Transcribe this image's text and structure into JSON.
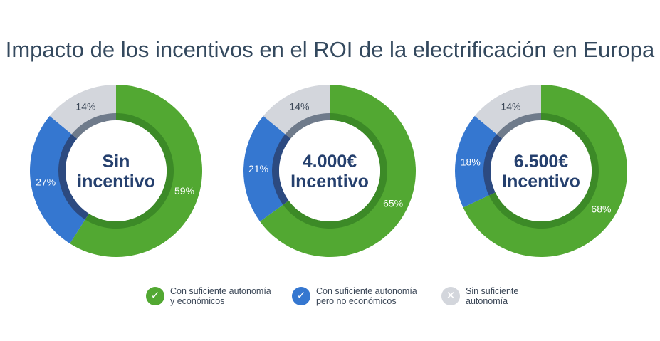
{
  "title": "Impacto de los incentivos en el ROI de la electrificación en Europa",
  "colors": {
    "green": "#52a832",
    "green_inner": "#3c8a27",
    "blue": "#3577d0",
    "blue_inner": "#2c4a80",
    "gray": "#d3d6dc",
    "gray_inner": "#6f7b8b",
    "center_text": "#25406e"
  },
  "chart_data": [
    {
      "type": "pie",
      "subtype": "donut",
      "center_label": [
        "Sin",
        "incentivo"
      ],
      "categories": [
        "Con suficiente autonomía y económicos",
        "Con suficiente autonomía pero no económicos",
        "Sin suficiente autonomía"
      ],
      "values": [
        59,
        27,
        14
      ],
      "labels": [
        "59%",
        "27%",
        "14%"
      ]
    },
    {
      "type": "pie",
      "subtype": "donut",
      "center_label": [
        "4.000€",
        "Incentivo"
      ],
      "categories": [
        "Con suficiente autonomía y económicos",
        "Con suficiente autonomía pero no económicos",
        "Sin suficiente autonomía"
      ],
      "values": [
        65,
        21,
        14
      ],
      "labels": [
        "65%",
        "21%",
        "14%"
      ]
    },
    {
      "type": "pie",
      "subtype": "donut",
      "center_label": [
        "6.500€",
        "Incentivo"
      ],
      "categories": [
        "Con suficiente autonomía y económicos",
        "Con suficiente autonomía pero no económicos",
        "Sin suficiente autonomía"
      ],
      "values": [
        68,
        18,
        14
      ],
      "labels": [
        "68%",
        "18%",
        "14%"
      ]
    }
  ],
  "legend": [
    {
      "line1": "Con suficiente autonomía",
      "line2": "y económicos",
      "icon": "check-icon"
    },
    {
      "line1": "Con suficiente autonomía",
      "line2": "pero no económicos",
      "icon": "check-icon"
    },
    {
      "line1": "Sin suficiente",
      "line2": "autonomía",
      "icon": "x-icon"
    }
  ]
}
